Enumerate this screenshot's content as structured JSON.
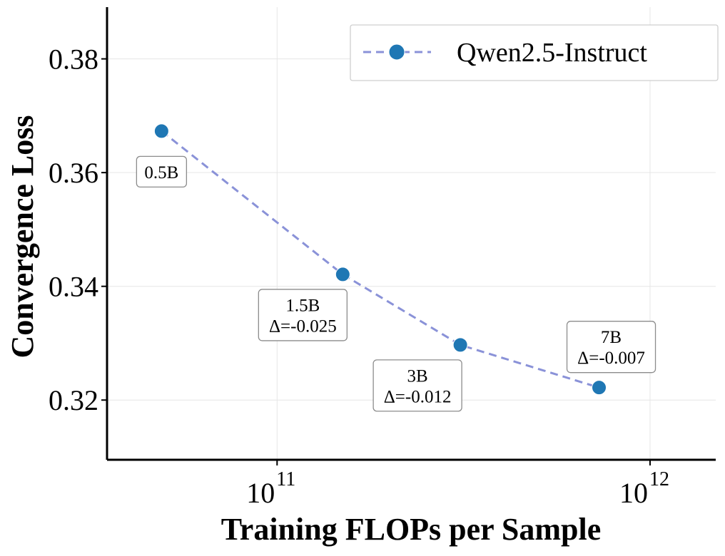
{
  "chart_data": {
    "type": "line",
    "title": "",
    "xlabel": "Training FLOPs per Sample",
    "ylabel": "Convergence Loss",
    "xscale": "log",
    "xlim": [
      35000000000.0,
      1500000000000.0
    ],
    "ylim": [
      0.3095,
      0.3891
    ],
    "grid": true,
    "legend_position": "top-right",
    "y_ticks": [
      {
        "value": 0.32,
        "label": "0.32"
      },
      {
        "value": 0.34,
        "label": "0.34"
      },
      {
        "value": 0.36,
        "label": "0.36"
      },
      {
        "value": 0.38,
        "label": "0.38"
      }
    ],
    "x_ticks": [
      {
        "value": 100000000000.0,
        "base": "10",
        "exp": "11"
      },
      {
        "value": 1000000000000.0,
        "base": "10",
        "exp": "12"
      }
    ],
    "series": [
      {
        "name": "Qwen2.5-Instruct",
        "color": "#1f77b4",
        "line_color": "#8a92d8",
        "line_style": "dashed",
        "points": [
          {
            "x": 49000000000.0,
            "y": 0.3673,
            "label": [
              "0.5B"
            ]
          },
          {
            "x": 150000000000.0,
            "y": 0.3421,
            "label": [
              "1.5B",
              "Δ=-0.025"
            ]
          },
          {
            "x": 310000000000.0,
            "y": 0.3297,
            "label": [
              "3B",
              "Δ=-0.012"
            ]
          },
          {
            "x": 730000000000.0,
            "y": 0.3222,
            "label": [
              "7B",
              "Δ=-0.007"
            ]
          }
        ]
      }
    ]
  }
}
